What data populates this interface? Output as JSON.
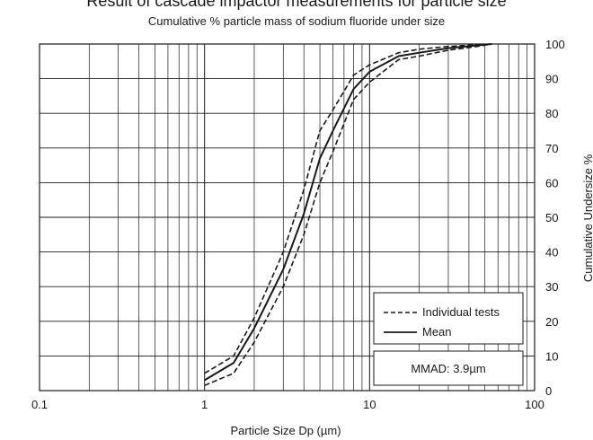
{
  "chart_data": {
    "type": "line",
    "title": "Result of cascade impactor measurements for particle size",
    "subtitle": "Cumulative % particle mass of sodium fluoride under size",
    "xlabel": "Particle Size Dp (µm)",
    "ylabel": "Cumulative Undersize %",
    "xscale": "log",
    "xlim": [
      0.1,
      100
    ],
    "ylim": [
      0,
      100
    ],
    "x_tick_labels": [
      "0.1",
      "1",
      "10",
      "100"
    ],
    "y_tick_labels": [
      "0",
      "10",
      "20",
      "30",
      "40",
      "50",
      "60",
      "70",
      "80",
      "90",
      "100"
    ],
    "grid": true,
    "y_axis_side": "right",
    "legend_position": "bottom-right",
    "series": [
      {
        "name": "Individual tests",
        "style": "dashed",
        "color": "#1a1a1a",
        "x": [
          1.0,
          1.5,
          2.0,
          3.0,
          4.0,
          5.0,
          6.0,
          8.0,
          10.0,
          15.0,
          20.0,
          30.0,
          45.0,
          55.0
        ],
        "y": [
          5,
          10,
          21,
          40,
          58,
          75,
          81,
          91,
          94,
          97.5,
          98.5,
          99.3,
          99.8,
          100
        ]
      },
      {
        "name": "Mean",
        "style": "solid",
        "color": "#1a1a1a",
        "x": [
          1.0,
          1.5,
          2.0,
          3.0,
          4.0,
          5.0,
          6.0,
          8.0,
          10.0,
          15.0,
          20.0,
          30.0,
          45.0,
          55.0
        ],
        "y": [
          3,
          8,
          18,
          35,
          51,
          67,
          75,
          87,
          92,
          96.5,
          97.5,
          98.8,
          99.6,
          100
        ]
      },
      {
        "name": "",
        "style": "dashed",
        "color": "#1a1a1a",
        "x": [
          1.0,
          1.5,
          2.0,
          3.0,
          4.0,
          5.0,
          6.0,
          8.0,
          10.0,
          15.0,
          20.0,
          30.0,
          45.0,
          55.0
        ],
        "y": [
          1.5,
          5,
          14,
          30,
          45,
          60,
          69,
          84,
          89,
          95.5,
          96.5,
          98.2,
          99.3,
          100
        ]
      }
    ],
    "annotation": "MMAD: 3.9µm"
  }
}
